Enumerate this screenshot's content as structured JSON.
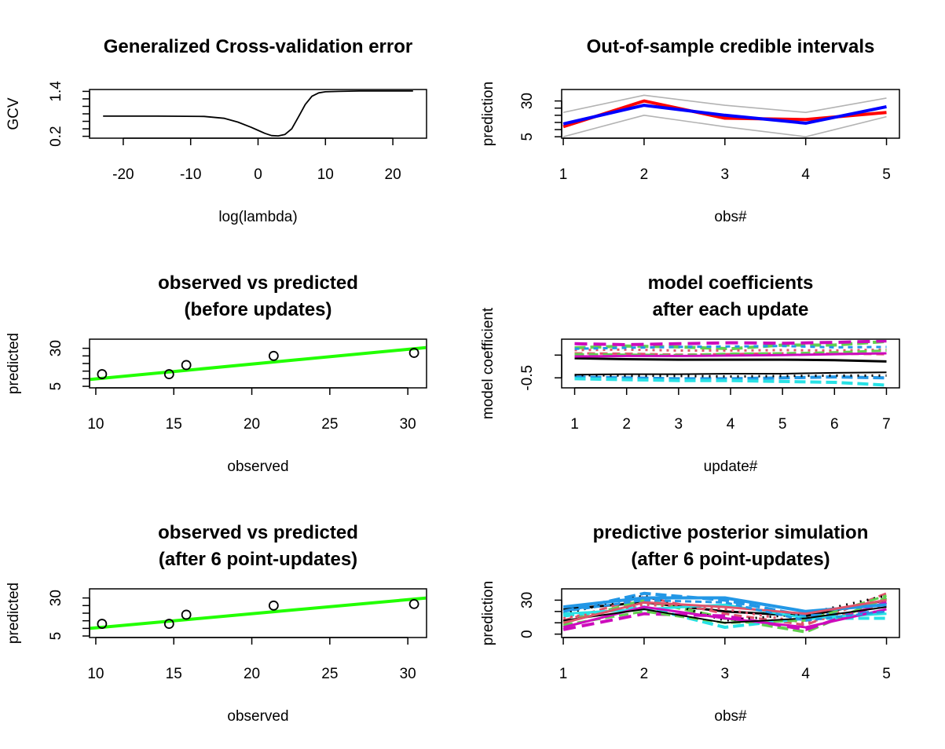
{
  "chart_data": [
    {
      "id": "gcv",
      "type": "line",
      "title": "Generalized Cross-validation error",
      "xlabel": "log(lambda)",
      "ylabel": "GCV",
      "xlim": [
        -25,
        25
      ],
      "ylim": [
        0.15,
        1.45
      ],
      "xticks": [
        -20,
        -10,
        0,
        10,
        20
      ],
      "yticks": [
        0.2,
        0.4,
        0.6,
        0.8,
        1.0,
        1.2,
        1.4
      ],
      "ytick_labels": [
        {
          "value": 0.2,
          "label": "0.2"
        },
        {
          "value": 1.4,
          "label": "1.4"
        }
      ],
      "series": [
        {
          "color": "#000000",
          "width": 1.8,
          "x": [
            -23,
            -15,
            -8,
            -5,
            -3,
            -1,
            0,
            1,
            2,
            3,
            4,
            5,
            6,
            7,
            8,
            9,
            10,
            12,
            15,
            20,
            23
          ],
          "y": [
            0.74,
            0.74,
            0.73,
            0.68,
            0.58,
            0.44,
            0.36,
            0.28,
            0.22,
            0.21,
            0.25,
            0.4,
            0.72,
            1.05,
            1.27,
            1.36,
            1.39,
            1.4,
            1.41,
            1.41,
            1.41
          ]
        }
      ]
    },
    {
      "id": "ci",
      "type": "line",
      "title": "Out-of-sample credible intervals",
      "xlabel": "obs#",
      "ylabel": "prediction",
      "xlim": [
        0.98,
        5.16
      ],
      "ylim": [
        4,
        38
      ],
      "xticks": [
        1,
        2,
        3,
        4,
        5
      ],
      "yticks": [
        5,
        10,
        15,
        20,
        25,
        30
      ],
      "ytick_labels": [
        {
          "value": 5,
          "label": "5"
        },
        {
          "value": 30,
          "label": "30"
        }
      ],
      "series": [
        {
          "color": "#b3b3b3",
          "width": 1.6,
          "x": [
            1,
            2,
            3,
            4,
            5
          ],
          "y": [
            22,
            34,
            27,
            22,
            32
          ]
        },
        {
          "color": "#b3b3b3",
          "width": 1.6,
          "x": [
            1,
            2,
            3,
            4,
            5
          ],
          "y": [
            5,
            20,
            12,
            5,
            19
          ]
        },
        {
          "color": "#ff0000",
          "width": 4,
          "x": [
            1,
            2,
            3,
            4,
            5
          ],
          "y": [
            12,
            30,
            18,
            17,
            22
          ]
        },
        {
          "color": "#0000ff",
          "width": 4,
          "x": [
            1,
            2,
            3,
            4,
            5
          ],
          "y": [
            14,
            27,
            20,
            14.5,
            26
          ]
        }
      ]
    },
    {
      "id": "ovp_before",
      "type": "scatter",
      "title": "observed vs predicted\n(before updates)",
      "xlabel": "observed",
      "ylabel": "predicted",
      "xlim": [
        9.6,
        31.2
      ],
      "ylim": [
        4,
        36
      ],
      "xticks": [
        10,
        15,
        20,
        25,
        30
      ],
      "yticks": [
        5,
        10,
        15,
        20,
        25,
        30
      ],
      "ytick_labels": [
        {
          "value": 5,
          "label": "5"
        },
        {
          "value": 30,
          "label": "30"
        }
      ],
      "points": {
        "x": [
          10.4,
          14.7,
          15.8,
          21.4,
          30.4
        ],
        "y": [
          13,
          13,
          19,
          25,
          27
        ]
      },
      "fit_line": {
        "color": "#22ff00",
        "width": 4,
        "x": [
          9.6,
          31.2
        ],
        "y": [
          9.5,
          30.5
        ]
      }
    },
    {
      "id": "coef",
      "type": "line",
      "title": "model coefficients\nafter each update",
      "xlabel": "update#",
      "ylabel": "model coefficient",
      "xlim": [
        0.75,
        7.25
      ],
      "ylim": [
        -0.72,
        0.35
      ],
      "xticks": [
        1,
        2,
        3,
        4,
        5,
        6,
        7
      ],
      "yticks": [
        -0.5,
        0.0
      ],
      "ytick_labels": [
        {
          "value": -0.5,
          "label": "-0.5"
        }
      ],
      "series": [
        {
          "color": "#000000",
          "width": 3,
          "dash": "",
          "x": [
            1,
            2,
            3,
            4,
            5,
            6,
            7
          ],
          "y": [
            -0.07,
            -0.09,
            -0.1,
            -0.1,
            -0.1,
            -0.11,
            -0.14
          ]
        },
        {
          "color": "#df536b",
          "width": 3,
          "dash": "10,6",
          "x": [
            1,
            2,
            3,
            4,
            5,
            6,
            7
          ],
          "y": [
            0.04,
            0.03,
            0.01,
            0.02,
            0.04,
            0.03,
            0.02
          ]
        },
        {
          "color": "#61d04f",
          "width": 4,
          "dash": "14,6",
          "x": [
            1,
            2,
            3,
            4,
            5,
            6,
            7
          ],
          "y": [
            0.16,
            0.2,
            0.18,
            0.14,
            0.22,
            0.22,
            0.3
          ]
        },
        {
          "color": "#2297e6",
          "width": 4,
          "dash": "14,6",
          "x": [
            1,
            2,
            3,
            4,
            5,
            6,
            7
          ],
          "y": [
            -0.48,
            -0.5,
            -0.52,
            -0.52,
            -0.5,
            -0.48,
            -0.5
          ]
        },
        {
          "color": "#28e2e5",
          "width": 4,
          "dash": "14,6",
          "x": [
            1,
            2,
            3,
            4,
            5,
            6,
            7
          ],
          "y": [
            -0.52,
            -0.54,
            -0.56,
            -0.56,
            -0.58,
            -0.6,
            -0.66
          ]
        },
        {
          "color": "#cd0bbc",
          "width": 4,
          "dash": "16,8",
          "x": [
            1,
            2,
            3,
            4,
            5,
            6,
            7
          ],
          "y": [
            0.25,
            0.23,
            0.25,
            0.27,
            0.26,
            0.28,
            0.31
          ]
        },
        {
          "color": "#000000",
          "width": 3,
          "dash": "2,7",
          "x": [
            1,
            2,
            3,
            4,
            5,
            6,
            7
          ],
          "y": [
            -0.44,
            -0.45,
            -0.46,
            -0.47,
            -0.46,
            -0.45,
            -0.45
          ]
        },
        {
          "color": "#df536b",
          "width": 3,
          "dash": "3,6",
          "x": [
            1,
            2,
            3,
            4,
            5,
            6,
            7
          ],
          "y": [
            0.11,
            0.12,
            0.1,
            0.1,
            0.11,
            0.1,
            0.12
          ]
        },
        {
          "color": "#61d04f",
          "width": 3,
          "dash": "12,6",
          "x": [
            1,
            2,
            3,
            4,
            5,
            6,
            7
          ],
          "y": [
            0.02,
            0.01,
            0.0,
            0.03,
            0.04,
            0.06,
            0.1
          ]
        },
        {
          "color": "#2297e6",
          "width": 3,
          "dash": "6,6",
          "x": [
            1,
            2,
            3,
            4,
            5,
            6,
            7
          ],
          "y": [
            0.14,
            0.16,
            0.18,
            0.19,
            0.2,
            0.17,
            0.18
          ]
        },
        {
          "color": "#000000",
          "width": 2,
          "dash": "",
          "x": [
            1,
            2,
            3,
            4,
            5,
            6,
            7
          ],
          "y": [
            -0.43,
            -0.42,
            -0.42,
            -0.41,
            -0.41,
            -0.39,
            -0.38
          ]
        },
        {
          "color": "#cd0bbc",
          "width": 3,
          "dash": "",
          "x": [
            1,
            2,
            3,
            4,
            5,
            6,
            7
          ],
          "y": [
            -0.03,
            -0.02,
            -0.02,
            -0.01,
            0.0,
            0.02,
            0.04
          ]
        }
      ]
    },
    {
      "id": "ovp_after",
      "type": "scatter",
      "title": "observed vs predicted\n(after 6 point-updates)",
      "xlabel": "observed",
      "ylabel": "predicted",
      "xlim": [
        9.6,
        31.2
      ],
      "ylim": [
        4,
        36
      ],
      "xticks": [
        10,
        15,
        20,
        25,
        30
      ],
      "yticks": [
        5,
        10,
        15,
        20,
        25,
        30
      ],
      "ytick_labels": [
        {
          "value": 5,
          "label": "5"
        },
        {
          "value": 30,
          "label": "30"
        }
      ],
      "points": {
        "x": [
          10.4,
          14.7,
          15.8,
          21.4,
          30.4
        ],
        "y": [
          13,
          13,
          19,
          25,
          26
        ]
      },
      "fit_line": {
        "color": "#22ff00",
        "width": 4,
        "x": [
          9.6,
          31.2
        ],
        "y": [
          10,
          30
        ]
      }
    },
    {
      "id": "pps",
      "type": "line",
      "title": "predictive posterior simulation\n(after 6 point-updates)",
      "xlabel": "obs#",
      "ylabel": "prediction",
      "xlim": [
        0.98,
        5.16
      ],
      "ylim": [
        -3,
        40
      ],
      "xticks": [
        1,
        2,
        3,
        4,
        5
      ],
      "yticks": [
        0,
        10,
        20,
        30
      ],
      "ytick_labels": [
        {
          "value": 0,
          "label": "0"
        },
        {
          "value": 30,
          "label": "30"
        }
      ],
      "series": [
        {
          "color": "#000000",
          "width": 3,
          "dash": "",
          "x": [
            1,
            2,
            3,
            4,
            5
          ],
          "y": [
            22,
            28,
            20,
            16,
            30
          ]
        },
        {
          "color": "#df536b",
          "width": 3,
          "dash": "10,6",
          "x": [
            1,
            2,
            3,
            4,
            5
          ],
          "y": [
            12,
            33,
            18,
            8,
            36
          ]
        },
        {
          "color": "#61d04f",
          "width": 4,
          "dash": "14,6",
          "x": [
            1,
            2,
            3,
            4,
            5
          ],
          "y": [
            10,
            30,
            14,
            2,
            32
          ]
        },
        {
          "color": "#2297e6",
          "width": 4,
          "dash": "14,6",
          "x": [
            1,
            2,
            3,
            4,
            5
          ],
          "y": [
            20,
            36,
            30,
            16,
            20
          ]
        },
        {
          "color": "#28e2e5",
          "width": 4,
          "dash": "14,6",
          "x": [
            1,
            2,
            3,
            4,
            5
          ],
          "y": [
            16,
            24,
            6,
            14,
            14
          ]
        },
        {
          "color": "#cd0bbc",
          "width": 4,
          "dash": "16,8",
          "x": [
            1,
            2,
            3,
            4,
            5
          ],
          "y": [
            4,
            18,
            16,
            4,
            28
          ]
        },
        {
          "color": "#000000",
          "width": 3,
          "dash": "2,7",
          "x": [
            1,
            2,
            3,
            4,
            5
          ],
          "y": [
            18,
            34,
            12,
            18,
            34
          ]
        },
        {
          "color": "#df536b",
          "width": 3,
          "dash": "3,6",
          "x": [
            1,
            2,
            3,
            4,
            5
          ],
          "y": [
            14,
            26,
            22,
            10,
            26
          ]
        },
        {
          "color": "#61d04f",
          "width": 3,
          "dash": "12,6",
          "x": [
            1,
            2,
            3,
            4,
            5
          ],
          "y": [
            8,
            20,
            10,
            12,
            34
          ]
        },
        {
          "color": "#2297e6",
          "width": 4,
          "dash": "",
          "x": [
            1,
            2,
            3,
            4,
            5
          ],
          "y": [
            24,
            32,
            32,
            20,
            26
          ]
        },
        {
          "color": "#28e2e5",
          "width": 3,
          "dash": "",
          "x": [
            1,
            2,
            3,
            4,
            5
          ],
          "y": [
            18,
            22,
            26,
            14,
            18
          ]
        },
        {
          "color": "#cd0bbc",
          "width": 3,
          "dash": "",
          "x": [
            1,
            2,
            3,
            4,
            5
          ],
          "y": [
            6,
            24,
            14,
            6,
            22
          ]
        },
        {
          "color": "#000000",
          "width": 2,
          "dash": "",
          "x": [
            1,
            2,
            3,
            4,
            5
          ],
          "y": [
            12,
            22,
            10,
            14,
            24
          ]
        },
        {
          "color": "#df536b",
          "width": 3,
          "dash": "",
          "x": [
            1,
            2,
            3,
            4,
            5
          ],
          "y": [
            10,
            28,
            24,
            18,
            30
          ]
        },
        {
          "color": "#2297e6",
          "width": 3,
          "dash": "8,5",
          "x": [
            1,
            2,
            3,
            4,
            5
          ],
          "y": [
            20,
            30,
            28,
            12,
            20
          ]
        }
      ]
    }
  ]
}
